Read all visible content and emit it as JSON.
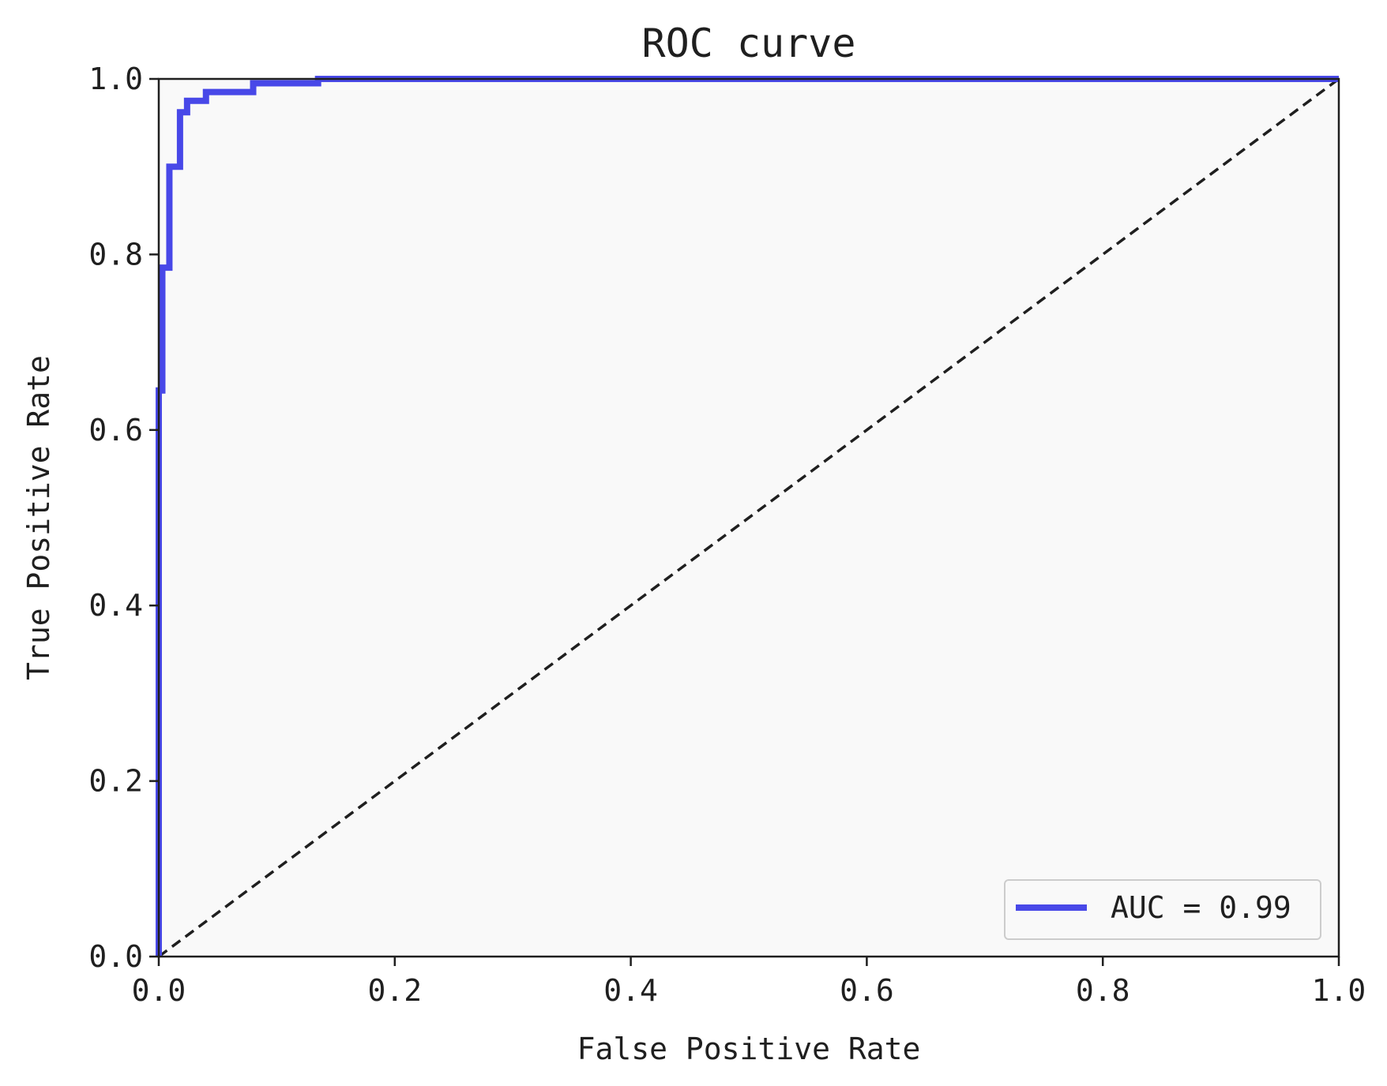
{
  "chart_data": {
    "type": "line",
    "title": "ROC curve",
    "xlabel": "False Positive Rate",
    "ylabel": "True Positive Rate",
    "xlim": [
      0.0,
      1.0
    ],
    "ylim": [
      0.0,
      1.0
    ],
    "x_ticks": [
      "0.0",
      "0.2",
      "0.4",
      "0.6",
      "0.8",
      "1.0"
    ],
    "y_ticks": [
      "0.0",
      "0.2",
      "0.4",
      "0.6",
      "0.8",
      "1.0"
    ],
    "grid": false,
    "legend_position": "lower-right",
    "plot_background": "#f9f9f9",
    "series": [
      {
        "name": "AUC = 0.99",
        "color": "#4848e8",
        "style": "solid",
        "x": [
          0.0,
          0.0,
          0.003,
          0.003,
          0.009,
          0.009,
          0.018,
          0.018,
          0.024,
          0.024,
          0.04,
          0.04,
          0.047,
          0.047,
          0.08,
          0.08,
          0.135,
          0.135,
          1.0
        ],
        "y": [
          0.0,
          0.645,
          0.645,
          0.785,
          0.785,
          0.9,
          0.9,
          0.962,
          0.962,
          0.975,
          0.975,
          0.985,
          0.985,
          0.985,
          0.985,
          0.995,
          0.995,
          1.0,
          1.0
        ]
      },
      {
        "color": "#1f1f1f",
        "style": "dashed",
        "x": [
          0.0,
          1.0
        ],
        "y": [
          0.0,
          1.0
        ]
      }
    ]
  }
}
